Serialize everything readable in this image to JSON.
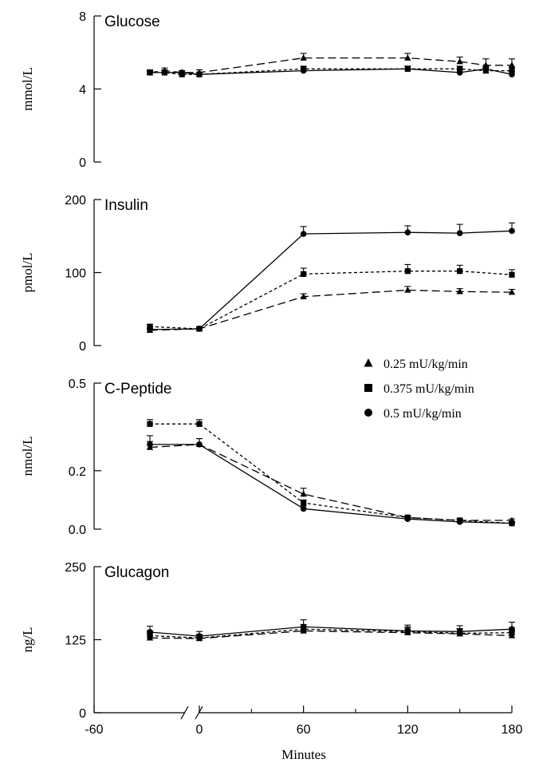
{
  "legend": [
    {
      "marker": "triangle",
      "label": "0.25 mU/kg/min"
    },
    {
      "marker": "square",
      "label": "0.375 mU/kg/min"
    },
    {
      "marker": "circle",
      "label": "0.5 mU/kg/min"
    }
  ],
  "x_axis": {
    "label": "Minutes",
    "ticks": [
      -60,
      0,
      60,
      120,
      180
    ],
    "tick_labels": [
      "-60",
      "0",
      "60",
      "120",
      "180"
    ],
    "break_between": [
      -60,
      0
    ]
  },
  "chart_data": [
    {
      "type": "line",
      "title": "Glucose",
      "ylabel": "mmol/L",
      "ylim": [
        0,
        8
      ],
      "yticks": [
        0,
        4,
        8
      ],
      "ytick_labels": [
        "0",
        "4",
        "8"
      ],
      "series": [
        {
          "name": "0.25 mU/kg/min",
          "marker": "triangle",
          "dash": "long",
          "x": [
            -30,
            -20,
            -10,
            0,
            60,
            120,
            150,
            165,
            180
          ],
          "y": [
            4.9,
            5.0,
            4.9,
            4.9,
            5.7,
            5.7,
            5.5,
            5.3,
            5.3
          ],
          "err": [
            0.15,
            0.15,
            0.1,
            0.15,
            0.25,
            0.25,
            0.25,
            0.35,
            0.35
          ]
        },
        {
          "name": "0.375 mU/kg/min",
          "marker": "square",
          "dash": "short",
          "x": [
            -30,
            -20,
            -10,
            0,
            60,
            120,
            150,
            165,
            180
          ],
          "y": [
            4.9,
            4.9,
            4.8,
            4.8,
            5.1,
            5.1,
            5.1,
            5.0,
            5.0
          ],
          "err": [
            0.1,
            0.15,
            0.1,
            0.1,
            0.15,
            0.15,
            0.15,
            0.2,
            0.2
          ]
        },
        {
          "name": "0.5 mU/kg/min",
          "marker": "circle",
          "dash": "solid",
          "x": [
            -30,
            -20,
            -10,
            0,
            60,
            120,
            150,
            165,
            180
          ],
          "y": [
            4.9,
            4.9,
            4.9,
            4.8,
            5.0,
            5.1,
            4.9,
            5.1,
            4.8
          ],
          "err": [
            0.1,
            0.1,
            0.1,
            0.1,
            0.1,
            0.15,
            0.15,
            0.15,
            0.15
          ]
        }
      ]
    },
    {
      "type": "line",
      "title": "Insulin",
      "ylabel": "pmol/L",
      "ylim": [
        0,
        200
      ],
      "yticks": [
        0,
        100,
        200
      ],
      "ytick_labels": [
        "0",
        "100",
        "200"
      ],
      "series": [
        {
          "name": "0.25 mU/kg/min",
          "marker": "triangle",
          "dash": "long",
          "x": [
            -30,
            0,
            60,
            120,
            150,
            180
          ],
          "y": [
            21,
            23,
            67,
            76,
            74,
            73
          ],
          "err": [
            2,
            2,
            4,
            5,
            4,
            4
          ]
        },
        {
          "name": "0.375 mU/kg/min",
          "marker": "square",
          "dash": "short",
          "x": [
            -30,
            0,
            60,
            120,
            150,
            180
          ],
          "y": [
            26,
            23,
            98,
            102,
            102,
            97
          ],
          "err": [
            3,
            2,
            8,
            9,
            8,
            7
          ]
        },
        {
          "name": "0.5 mU/kg/min",
          "marker": "circle",
          "dash": "solid",
          "x": [
            -30,
            0,
            60,
            120,
            150,
            180
          ],
          "y": [
            22,
            23,
            153,
            155,
            154,
            157
          ],
          "err": [
            2,
            2,
            10,
            9,
            12,
            11
          ]
        }
      ]
    },
    {
      "type": "line",
      "title": "C-Peptide",
      "ylabel": "nmol/L",
      "ylim": [
        0,
        0.5
      ],
      "yticks": [
        0,
        0.2,
        0.5
      ],
      "ytick_labels": [
        "0.0",
        "0.2",
        "0.5"
      ],
      "series": [
        {
          "name": "0.25 mU/kg/min",
          "marker": "triangle",
          "dash": "long",
          "x": [
            -30,
            0,
            60,
            120,
            150,
            180
          ],
          "y": [
            0.28,
            0.29,
            0.12,
            0.04,
            0.03,
            0.03
          ],
          "err": [
            0.02,
            0.02,
            0.02,
            0.005,
            0.005,
            0.005
          ]
        },
        {
          "name": "0.375 mU/kg/min",
          "marker": "square",
          "dash": "short",
          "x": [
            -30,
            0,
            60,
            120,
            150,
            180
          ],
          "y": [
            0.36,
            0.36,
            0.09,
            0.04,
            0.03,
            0.02
          ],
          "err": [
            0.015,
            0.015,
            0.01,
            0.005,
            0.005,
            0.005
          ]
        },
        {
          "name": "0.5 mU/kg/min",
          "marker": "circle",
          "dash": "solid",
          "x": [
            -30,
            0,
            60,
            120,
            150,
            180
          ],
          "y": [
            0.29,
            0.29,
            0.07,
            0.035,
            0.025,
            0.02
          ],
          "err": [
            0.03,
            0.02,
            0.01,
            0.005,
            0.005,
            0.005
          ]
        }
      ]
    },
    {
      "type": "line",
      "title": "Glucagon",
      "ylabel": "ng/L",
      "ylim": [
        0,
        250
      ],
      "yticks": [
        0,
        125,
        250
      ],
      "ytick_labels": [
        "0",
        "125",
        "250"
      ],
      "series": [
        {
          "name": "0.25 mU/kg/min",
          "marker": "triangle",
          "dash": "long",
          "x": [
            -30,
            0,
            60,
            120,
            150,
            180
          ],
          "y": [
            128,
            127,
            140,
            137,
            135,
            132
          ],
          "err": [
            8,
            6,
            8,
            8,
            8,
            8
          ]
        },
        {
          "name": "0.375 mU/kg/min",
          "marker": "square",
          "dash": "short",
          "x": [
            -30,
            0,
            60,
            120,
            150,
            180
          ],
          "y": [
            132,
            128,
            143,
            139,
            136,
            137
          ],
          "err": [
            8,
            6,
            8,
            8,
            8,
            8
          ]
        },
        {
          "name": "0.5 mU/kg/min",
          "marker": "circle",
          "dash": "solid",
          "x": [
            -30,
            0,
            60,
            120,
            150,
            180
          ],
          "y": [
            138,
            131,
            147,
            140,
            139,
            143
          ],
          "err": [
            10,
            8,
            12,
            10,
            10,
            12
          ]
        }
      ]
    }
  ]
}
